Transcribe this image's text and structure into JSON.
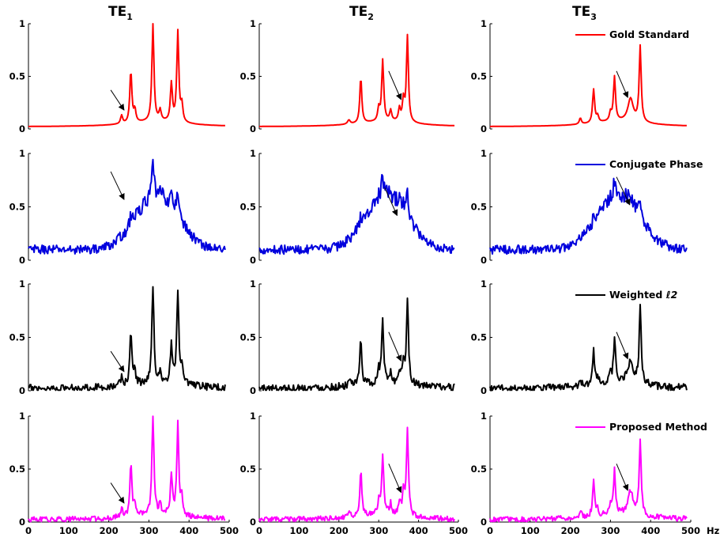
{
  "column_titles": [
    {
      "main": "TE",
      "sub": "1"
    },
    {
      "main": "TE",
      "sub": "2"
    },
    {
      "main": "TE",
      "sub": "3"
    }
  ],
  "x_unit_label": "Hz",
  "chart_data": {
    "type": "line",
    "xlim": [
      0,
      500
    ],
    "ylim": [
      0,
      1
    ],
    "x_ticks": [
      0,
      100,
      200,
      300,
      400,
      500
    ],
    "y_ticks": [
      0,
      0.5,
      1
    ],
    "y_tick_labels": [
      "0",
      "0.5",
      "1"
    ],
    "rows": [
      {
        "legend": "Gold Standard",
        "color": "#ff0000",
        "kind": "gold",
        "noise": 0,
        "legend_italic_suffix": ""
      },
      {
        "legend": "Conjugate Phase",
        "color": "#0000dd",
        "kind": "cp",
        "noise": 0.06,
        "legend_italic_suffix": ""
      },
      {
        "legend": "Weighted ",
        "color": "#000000",
        "kind": "wl2",
        "noise": 0.035,
        "legend_italic_suffix": "ℓ2"
      },
      {
        "legend": "Proposed Method",
        "color": "#ff00ff",
        "kind": "prop",
        "noise": 0.025,
        "legend_italic_suffix": ""
      }
    ],
    "columns": [
      {
        "name": "TE1",
        "peaks": [
          {
            "x": 232,
            "h": 0.08,
            "w": 3
          },
          {
            "x": 255,
            "h": 0.5,
            "w": 3
          },
          {
            "x": 265,
            "h": 0.12,
            "w": 3
          },
          {
            "x": 310,
            "h": 0.93,
            "w": 3
          },
          {
            "x": 328,
            "h": 0.1,
            "w": 3
          },
          {
            "x": 356,
            "h": 0.36,
            "w": 3
          },
          {
            "x": 372,
            "h": 0.86,
            "w": 3
          },
          {
            "x": 382,
            "h": 0.16,
            "w": 3
          }
        ],
        "arrow": {
          "from": [
            205,
            0.37
          ],
          "to": [
            238,
            0.18
          ]
        },
        "cp_arrow": {
          "from": [
            205,
            0.83
          ],
          "to": [
            238,
            0.57
          ]
        }
      },
      {
        "name": "TE2",
        "peaks": [
          {
            "x": 225,
            "h": 0.04,
            "w": 4
          },
          {
            "x": 255,
            "h": 0.44,
            "w": 3
          },
          {
            "x": 300,
            "h": 0.12,
            "w": 3
          },
          {
            "x": 310,
            "h": 0.58,
            "w": 3
          },
          {
            "x": 330,
            "h": 0.1,
            "w": 3
          },
          {
            "x": 352,
            "h": 0.12,
            "w": 3
          },
          {
            "x": 362,
            "h": 0.2,
            "w": 3
          },
          {
            "x": 372,
            "h": 0.82,
            "w": 3
          }
        ],
        "arrow": {
          "from": [
            325,
            0.55
          ],
          "to": [
            356,
            0.28
          ]
        },
        "cp_arrow": {
          "from": [
            315,
            0.68
          ],
          "to": [
            346,
            0.42
          ]
        }
      },
      {
        "name": "TE3",
        "peaks": [
          {
            "x": 225,
            "h": 0.06,
            "w": 3
          },
          {
            "x": 258,
            "h": 0.32,
            "w": 3
          },
          {
            "x": 268,
            "h": 0.06,
            "w": 3
          },
          {
            "x": 300,
            "h": 0.08,
            "w": 3
          },
          {
            "x": 310,
            "h": 0.42,
            "w": 3
          },
          {
            "x": 350,
            "h": 0.22,
            "w": 8
          },
          {
            "x": 374,
            "h": 0.72,
            "w": 3
          }
        ],
        "arrow": {
          "from": [
            315,
            0.55
          ],
          "to": [
            343,
            0.3
          ]
        },
        "cp_arrow": {
          "from": [
            315,
            0.78
          ],
          "to": [
            348,
            0.52
          ]
        }
      }
    ]
  }
}
